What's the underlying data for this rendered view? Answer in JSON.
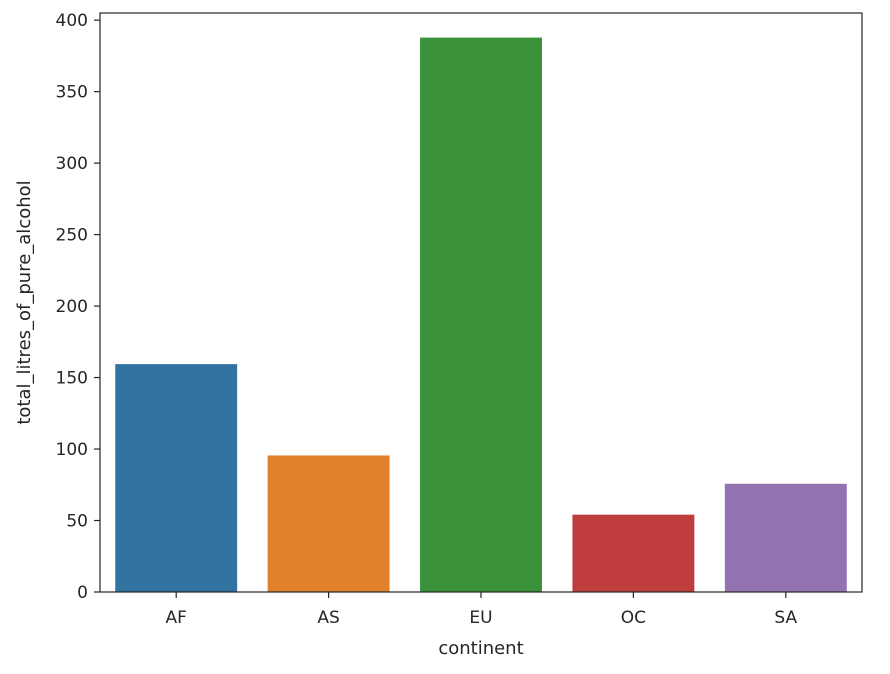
{
  "chart_data": {
    "type": "bar",
    "title": "",
    "xlabel": "continent",
    "ylabel": "total_litres_of_pure_alcohol",
    "categories": [
      "AF",
      "AS",
      "EU",
      "OC",
      "SA"
    ],
    "values": [
      159.4,
      95.5,
      387.8,
      54.1,
      75.7
    ],
    "colors": [
      "#3274a1",
      "#e1812c",
      "#3a923a",
      "#c03d3e",
      "#9372b2"
    ],
    "ylim": [
      0,
      405
    ],
    "yticks": [
      0,
      50,
      100,
      150,
      200,
      250,
      300,
      350,
      400
    ],
    "grid": false,
    "legend": "none"
  }
}
